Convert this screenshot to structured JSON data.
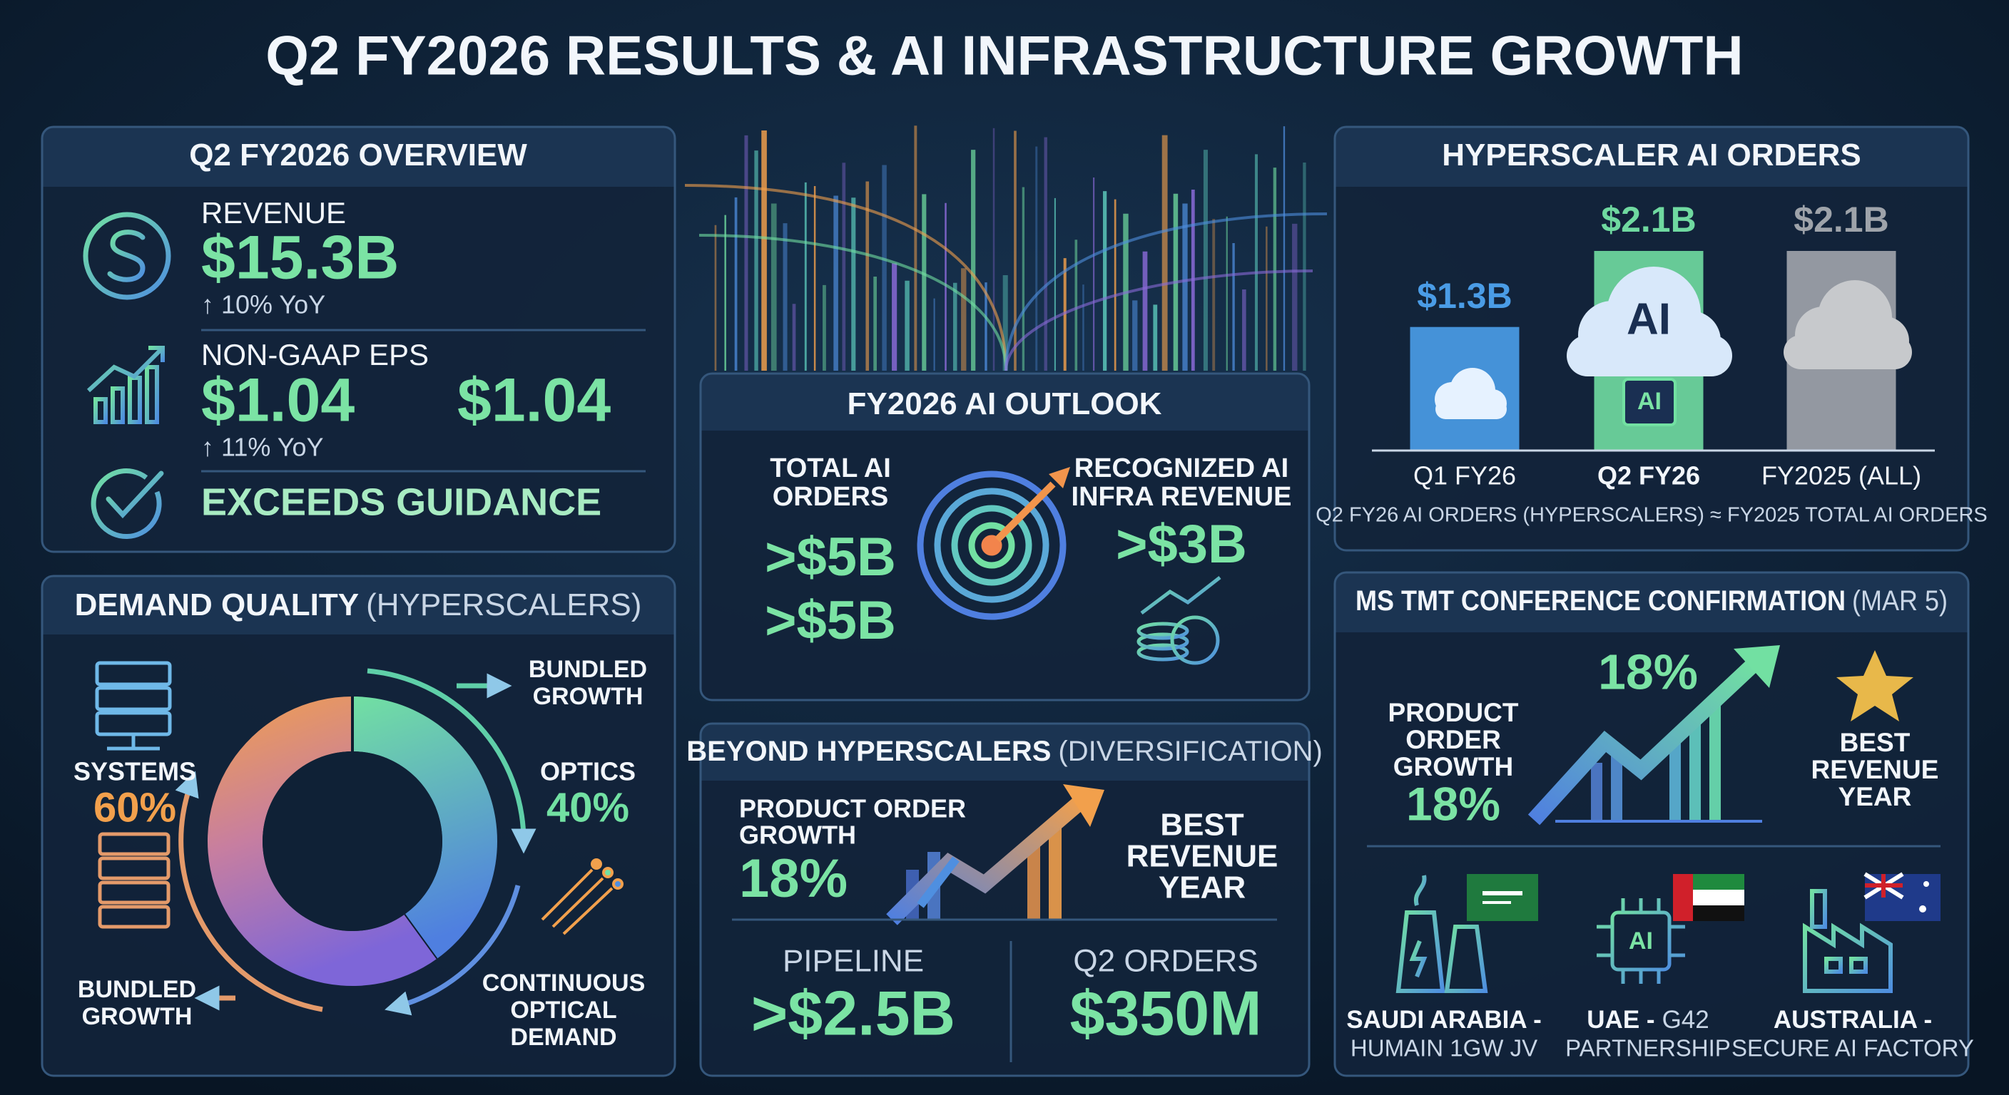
{
  "title": "Q2 FY2026 RESULTS & AI INFRASTRUCTURE GROWTH",
  "overview": {
    "title": "Q2 FY2026 OVERVIEW",
    "revenue": {
      "label": "REVENUE",
      "value": "$15.3B",
      "change": "↑ 10% YoY"
    },
    "eps": {
      "label": "NON-GAAP EPS",
      "values": [
        "$1.04",
        "$1.04"
      ],
      "change": "↑ 11% YoY"
    },
    "status": "EXCEEDS GUIDANCE"
  },
  "demand_quality": {
    "title": "DEMAND QUALITY",
    "subtitle": "(HYPERSCALERS)",
    "segments": [
      {
        "name": "SYSTEMS",
        "value": 60,
        "value_label": "60%",
        "color": "#f2a04c"
      },
      {
        "name": "OPTICS",
        "value": 40,
        "value_label": "40%",
        "color": "#72e0a2"
      }
    ],
    "annotations": [
      [
        "BUNDLED",
        "GROWTH"
      ],
      [
        "CONTINUOUS",
        "OPTICAL",
        "DEMAND"
      ],
      [
        "BUNDLED",
        "GROWTH"
      ]
    ]
  },
  "ai_outlook": {
    "title": "FY2026 AI OUTLOOK",
    "orders": {
      "label": [
        "TOTAL AI",
        "ORDERS"
      ],
      "values": [
        ">$5B",
        ">$5B"
      ]
    },
    "revenue": {
      "label": [
        "RECOGNIZED AI",
        "INFRA REVENUE"
      ],
      "value": ">$3B"
    }
  },
  "beyond_hyperscalers": {
    "title": "BEYOND HYPERSCALERS",
    "subtitle": "(DIVERSIFICATION)",
    "growth": {
      "label": [
        "PRODUCT ORDER",
        "GROWTH"
      ],
      "value": "18%"
    },
    "highlight": [
      "BEST",
      "REVENUE",
      "YEAR"
    ],
    "pipeline": {
      "label": "PIPELINE",
      "value": ">$2.5B"
    },
    "q2_orders": {
      "label": "Q2 ORDERS",
      "value": "$350M"
    }
  },
  "hyperscaler_orders": {
    "title": "HYPERSCALER AI ORDERS",
    "type": "bar",
    "categories": [
      "Q1 FY26",
      "Q2 FY26",
      "FY2025 (ALL)"
    ],
    "values": [
      1.3,
      2.1,
      2.1
    ],
    "value_labels": [
      "$1.3B",
      "$2.1B",
      "$2.1B"
    ],
    "colors": [
      "#4a9ce6",
      "#6fd9a0",
      "#9ea3aa"
    ],
    "highlight": 1,
    "icon_labels": [
      "AI",
      "AI"
    ],
    "note": "Q2 FY26 AI ORDERS (HYPERSCALERS) ≈ FY2025 TOTAL AI ORDERS"
  },
  "ms_tmt": {
    "title": "MS TMT CONFERENCE CONFIRMATION",
    "subtitle": "(MAR 5)",
    "chart_label": "18%",
    "growth": {
      "label": [
        "PRODUCT",
        "ORDER",
        "GROWTH"
      ],
      "value": "18%"
    },
    "highlight": [
      "BEST",
      "REVENUE",
      "YEAR"
    ],
    "regions": [
      {
        "name": "SAUDI ARABIA -",
        "detail": [
          "HUMAIN 1GW JV"
        ]
      },
      {
        "name": "UAE -",
        "detail": [
          "G42",
          "PARTNERSHIP"
        ],
        "icon_label": "AI"
      },
      {
        "name": "AUSTRALIA -",
        "detail": [
          "SECURE AI FACTORY"
        ]
      }
    ]
  }
}
